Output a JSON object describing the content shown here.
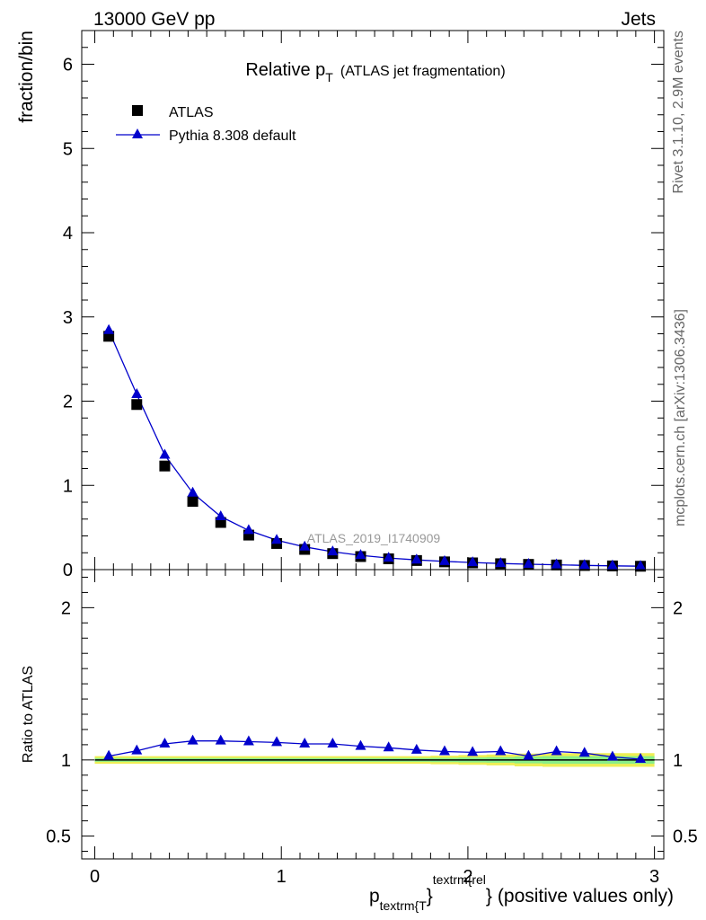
{
  "header": {
    "left_label": "13000 GeV pp",
    "right_label": "Jets"
  },
  "side_labels": {
    "rivet": "Rivet 3.1.10,  2.9M events",
    "mcplots": "mcplots.cern.ch [arXiv:1306.3436]"
  },
  "watermark": "ATLAS_2019_I1740909",
  "chart_data": [
    {
      "type": "scatter",
      "title_main": "Relative p",
      "title_sub": "T",
      "title_rest": "(ATLAS jet fragmentation)",
      "ylabel": "fraction/bin",
      "xlim": [
        -0.07,
        3.05
      ],
      "ylim": [
        0,
        6.4
      ],
      "yticks": [
        0,
        1,
        2,
        3,
        4,
        5,
        6
      ],
      "legend_position": "top-left",
      "x": [
        0.075,
        0.225,
        0.375,
        0.525,
        0.675,
        0.825,
        0.975,
        1.125,
        1.275,
        1.425,
        1.575,
        1.725,
        1.875,
        2.025,
        2.175,
        2.325,
        2.475,
        2.625,
        2.775,
        2.925
      ],
      "series": [
        {
          "name": "ATLAS",
          "marker": "square",
          "color": "#000000",
          "values": [
            2.77,
            1.96,
            1.23,
            0.81,
            0.56,
            0.41,
            0.31,
            0.24,
            0.19,
            0.155,
            0.128,
            0.108,
            0.092,
            0.08,
            0.07,
            0.062,
            0.055,
            0.049,
            0.044,
            0.04
          ]
        },
        {
          "name": "Pythia 8.308 default",
          "marker": "triangle",
          "color": "#0000cc",
          "values": [
            2.84,
            2.08,
            1.36,
            0.91,
            0.63,
            0.465,
            0.35,
            0.27,
            0.212,
            0.17,
            0.138,
            0.115,
            0.097,
            0.084,
            0.073,
            0.0635,
            0.0572,
            0.0502,
            0.0449,
            0.0403
          ]
        }
      ]
    },
    {
      "type": "line",
      "ylabel": "Ratio to ATLAS",
      "xlabel_main": "p",
      "xlabel_sub": "textrm{T",
      "xlabel_sup": "textrm{rel",
      "xlabel_brace1": "}",
      "xlabel_brace2": "}",
      "xlabel_rest": "(positive values only)",
      "xlim": [
        -0.07,
        3.05
      ],
      "ylim": [
        0.35,
        2.25
      ],
      "yticks": [
        0.5,
        1,
        2
      ],
      "ytick_labels": [
        "0.5",
        "1",
        "2"
      ],
      "xticks": [
        0,
        1,
        2,
        3
      ],
      "xtick_labels": [
        "0",
        "1",
        "2",
        "3"
      ],
      "reference": 1,
      "x": [
        0.075,
        0.225,
        0.375,
        0.525,
        0.675,
        0.825,
        0.975,
        1.125,
        1.275,
        1.425,
        1.575,
        1.725,
        1.875,
        2.025,
        2.175,
        2.325,
        2.475,
        2.625,
        2.775,
        2.925
      ],
      "series": [
        {
          "name": "Pythia 8.308 default",
          "color": "#0000cc",
          "values": [
            1.025,
            1.06,
            1.105,
            1.125,
            1.125,
            1.12,
            1.115,
            1.105,
            1.105,
            1.09,
            1.08,
            1.065,
            1.055,
            1.05,
            1.055,
            1.025,
            1.055,
            1.045,
            1.02,
            1.005
          ]
        }
      ],
      "bands": {
        "inner_color": "#88ee88",
        "outer_color": "#eeee55",
        "inner_halfwidth": [
          0.012,
          0.012,
          0.012,
          0.012,
          0.012,
          0.012,
          0.012,
          0.012,
          0.012,
          0.012,
          0.012,
          0.012,
          0.014,
          0.016,
          0.018,
          0.022,
          0.025,
          0.025,
          0.025,
          0.025
        ],
        "outer_halfwidth": [
          0.025,
          0.025,
          0.025,
          0.025,
          0.025,
          0.025,
          0.025,
          0.025,
          0.025,
          0.025,
          0.025,
          0.025,
          0.028,
          0.032,
          0.036,
          0.042,
          0.045,
          0.045,
          0.045,
          0.045
        ]
      }
    }
  ]
}
